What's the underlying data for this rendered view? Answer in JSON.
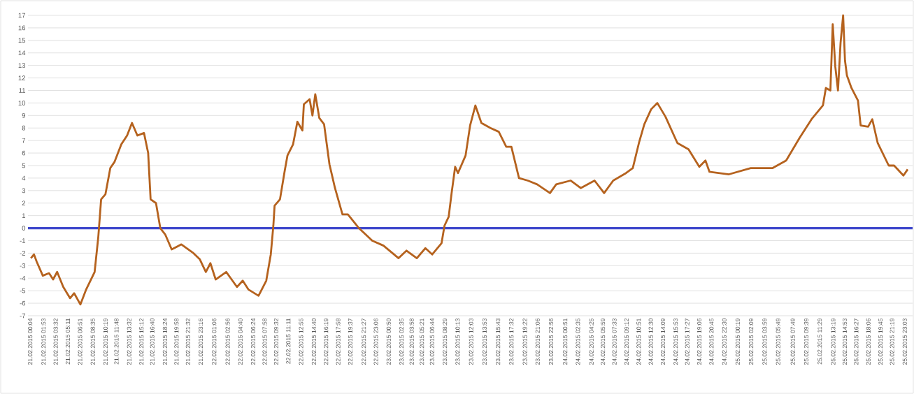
{
  "chart_data": {
    "type": "line",
    "x": [
      "2015-02-21T00:10",
      "2015-02-21T00:35",
      "2015-02-21T00:58",
      "2015-02-21T01:47",
      "2015-02-21T02:38",
      "2015-02-21T03:11",
      "2015-02-21T03:44",
      "2015-02-21T04:34",
      "2015-02-21T05:30",
      "2015-02-21T06:03",
      "2015-02-21T06:54",
      "2015-02-21T07:41",
      "2015-02-21T08:50",
      "2015-02-21T09:20",
      "2015-02-21T09:43",
      "2015-02-21T10:18",
      "2015-02-21T10:58",
      "2015-02-21T11:33",
      "2015-02-21T12:28",
      "2015-02-21T13:15",
      "2015-02-21T13:55",
      "2015-02-21T14:39",
      "2015-02-21T15:33",
      "2015-02-21T16:07",
      "2015-02-21T16:27",
      "2015-02-21T17:11",
      "2015-02-21T17:46",
      "2015-02-21T18:26",
      "2015-02-21T19:19",
      "2015-02-21T20:38",
      "2015-02-21T22:17",
      "2015-02-21T23:09",
      "2015-02-21T23:58",
      "2015-02-22T00:35",
      "2015-02-22T01:18",
      "2015-02-22T02:44",
      "2015-02-22T04:12",
      "2015-02-22T04:59",
      "2015-02-22T05:45",
      "2015-02-22T07:08",
      "2015-02-22T08:11",
      "2015-02-22T08:48",
      "2015-02-22T09:09",
      "2015-02-22T09:19",
      "2015-02-22T10:03",
      "2015-02-22T10:42",
      "2015-02-22T11:04",
      "2015-02-22T11:50",
      "2015-02-22T12:25",
      "2015-02-22T13:06",
      "2015-02-22T13:18",
      "2015-02-22T14:05",
      "2015-02-22T14:28",
      "2015-02-22T14:51",
      "2015-02-22T15:24",
      "2015-02-22T16:03",
      "2015-02-22T16:47",
      "2015-02-22T17:32",
      "2015-02-22T18:33",
      "2015-02-22T19:17",
      "2015-02-22T20:47",
      "2015-02-22T22:36",
      "2015-02-23T00:08",
      "2015-02-23T02:11",
      "2015-02-23T03:16",
      "2015-02-23T04:40",
      "2015-02-23T05:50",
      "2015-02-23T06:46",
      "2015-02-23T08:02",
      "2015-02-23T08:26",
      "2015-02-23T09:00",
      "2015-02-23T09:24",
      "2015-02-23T09:53",
      "2015-02-23T10:16",
      "2015-02-23T11:18",
      "2015-02-23T11:55",
      "2015-02-23T12:38",
      "2015-02-23T13:27",
      "2015-02-23T14:41",
      "2015-02-23T15:49",
      "2015-02-23T16:50",
      "2015-02-23T17:32",
      "2015-02-23T18:34",
      "2015-02-23T19:46",
      "2015-02-23T21:02",
      "2015-02-23T22:47",
      "2015-02-23T23:38",
      "2015-02-24T01:35",
      "2015-02-24T02:58",
      "2015-02-24T04:51",
      "2015-02-24T06:09",
      "2015-02-24T07:23",
      "2015-02-24T09:08",
      "2015-02-24T10:03",
      "2015-02-24T10:53",
      "2015-02-24T11:37",
      "2015-02-24T12:33",
      "2015-02-24T13:23",
      "2015-02-24T14:30",
      "2015-02-24T16:07",
      "2015-02-24T17:38",
      "2015-02-24T19:06",
      "2015-02-24T19:56",
      "2015-02-24T20:29",
      "2015-02-24T23:08",
      "2015-02-25T02:06",
      "2015-02-25T05:05",
      "2015-02-25T06:55",
      "2015-02-25T08:44",
      "2015-02-25T10:22",
      "2015-02-25T11:55",
      "2015-02-25T12:19",
      "2015-02-25T12:56",
      "2015-02-25T13:15",
      "2015-02-25T13:36",
      "2015-02-25T13:58",
      "2015-02-25T14:19",
      "2015-02-25T14:40",
      "2015-02-25T14:55",
      "2015-02-25T15:11",
      "2015-02-25T15:48",
      "2015-02-25T16:41",
      "2015-02-25T17:03",
      "2015-02-25T18:04",
      "2015-02-25T18:38",
      "2015-02-25T19:22",
      "2015-02-25T20:52",
      "2015-02-25T21:36",
      "2015-02-25T22:52",
      "2015-02-25T23:27"
    ],
    "series": [
      {
        "color": "#b5621e",
        "values": [
          -2.4,
          -2.1,
          -2.7,
          -3.8,
          -3.6,
          -4.1,
          -3.5,
          -4.7,
          -5.6,
          -5.2,
          -6.1,
          -4.9,
          -3.5,
          -0.7,
          2.3,
          2.7,
          4.8,
          5.3,
          6.7,
          7.4,
          8.4,
          7.4,
          7.6,
          6.0,
          2.3,
          2.0,
          0.0,
          -0.5,
          -1.7,
          -1.3,
          -2.0,
          -2.5,
          -3.5,
          -2.8,
          -4.1,
          -3.5,
          -4.7,
          -4.2,
          -4.9,
          -5.4,
          -4.2,
          -2.1,
          0.2,
          1.8,
          2.3,
          4.6,
          5.8,
          6.7,
          8.5,
          7.8,
          9.9,
          10.3,
          9.0,
          10.7,
          8.8,
          8.3,
          5.1,
          3.2,
          1.1,
          1.1,
          0.0,
          -1.0,
          -1.4,
          -2.4,
          -1.8,
          -2.4,
          -1.6,
          -2.1,
          -1.2,
          0.2,
          0.9,
          2.8,
          4.9,
          4.4,
          5.8,
          8.2,
          9.8,
          8.4,
          8.0,
          7.7,
          6.5,
          6.5,
          4.0,
          3.8,
          3.5,
          2.8,
          3.5,
          3.8,
          3.2,
          3.8,
          2.8,
          3.8,
          4.4,
          4.8,
          6.8,
          8.3,
          9.5,
          10.0,
          8.9,
          6.8,
          6.3,
          4.9,
          5.4,
          4.5,
          4.3,
          4.8,
          4.8,
          5.4,
          7.2,
          8.7,
          9.8,
          11.2,
          11.0,
          16.3,
          12.9,
          11.0,
          14.8,
          17.0,
          13.4,
          12.2,
          11.2,
          10.2,
          8.2,
          8.1,
          8.7,
          6.8,
          5.0,
          5.0,
          4.2,
          4.7
        ]
      }
    ],
    "xlim": [
      "2015-02-20T23:46",
      "2015-02-26T00:07"
    ],
    "xticks": [
      {
        "value": "2015-02-21T00:04",
        "label": "21.02.2015 00:04"
      },
      {
        "value": "2015-02-21T01:53",
        "label": "21.02.2015 01:53"
      },
      {
        "value": "2015-02-21T03:32",
        "label": "21.02.2015 03:32"
      },
      {
        "value": "2015-02-21T05:11",
        "label": "21.02.2015 05:11"
      },
      {
        "value": "2015-02-21T06:51",
        "label": "21.02.2015 06:51"
      },
      {
        "value": "2015-02-21T08:35",
        "label": "21.02.2015 08:35"
      },
      {
        "value": "2015-02-21T10:19",
        "label": "21.02.2015 10:19"
      },
      {
        "value": "2015-02-21T11:48",
        "label": "21.02.2015 11:48"
      },
      {
        "value": "2015-02-21T13:32",
        "label": "21.02.2015 13:32"
      },
      {
        "value": "2015-02-21T15:12",
        "label": "21.02.2015 15:12"
      },
      {
        "value": "2015-02-21T16:40",
        "label": "21.02.2015 16:40"
      },
      {
        "value": "2015-02-21T18:24",
        "label": "21.02.2015 18:24"
      },
      {
        "value": "2015-02-21T19:58",
        "label": "21.02.2015 19:58"
      },
      {
        "value": "2015-02-21T21:32",
        "label": "21.02.2015 21:32"
      },
      {
        "value": "2015-02-21T23:16",
        "label": "21.02.2015 23:16"
      },
      {
        "value": "2015-02-22T01:06",
        "label": "22.02.2015 01:06"
      },
      {
        "value": "2015-02-22T02:56",
        "label": "22.02.2015 02:56"
      },
      {
        "value": "2015-02-22T04:40",
        "label": "22.02.2015 04:40"
      },
      {
        "value": "2015-02-22T06:24",
        "label": "22.02.2015 06:24"
      },
      {
        "value": "2015-02-22T07:58",
        "label": "22.02.2015 07:58"
      },
      {
        "value": "2015-02-22T09:32",
        "label": "22.02.2015 09:32"
      },
      {
        "value": "2015-02-22T11:11",
        "label": "22.02.2015 11:11"
      },
      {
        "value": "2015-02-22T12:55",
        "label": "22.02.2015 12:55"
      },
      {
        "value": "2015-02-22T14:40",
        "label": "22.02.2015 14:40"
      },
      {
        "value": "2015-02-22T16:19",
        "label": "22.02.2015 16:19"
      },
      {
        "value": "2015-02-22T17:58",
        "label": "22.02.2015 17:58"
      },
      {
        "value": "2015-02-22T19:37",
        "label": "22.02.2015 19:37"
      },
      {
        "value": "2015-02-22T21:27",
        "label": "22.02.2015 21:27"
      },
      {
        "value": "2015-02-22T23:06",
        "label": "22.02.2015 23:06"
      },
      {
        "value": "2015-02-23T00:50",
        "label": "23.02.2015 00:50"
      },
      {
        "value": "2015-02-23T02:35",
        "label": "23.02.2015 02:35"
      },
      {
        "value": "2015-02-23T03:58",
        "label": "23.02.2015 03:58"
      },
      {
        "value": "2015-02-23T05:21",
        "label": "23.02.2015 05:21"
      },
      {
        "value": "2015-02-23T06:44",
        "label": "23.02.2015 06:44"
      },
      {
        "value": "2015-02-23T08:29",
        "label": "23.02.2015 08:29"
      },
      {
        "value": "2015-02-23T10:13",
        "label": "23.02.2015 10:13"
      },
      {
        "value": "2015-02-23T12:03",
        "label": "23.02.2015 12:03"
      },
      {
        "value": "2015-02-23T13:53",
        "label": "23.02.2015 13:53"
      },
      {
        "value": "2015-02-23T15:43",
        "label": "23.02.2015 15:43"
      },
      {
        "value": "2015-02-23T17:32",
        "label": "23.02.2015 17:32"
      },
      {
        "value": "2015-02-23T19:22",
        "label": "23.02.2015 19:22"
      },
      {
        "value": "2015-02-23T21:06",
        "label": "23.02.2015 21:06"
      },
      {
        "value": "2015-02-23T22:56",
        "label": "23.02.2015 22:56"
      },
      {
        "value": "2015-02-24T00:51",
        "label": "24.02.2015 00:51"
      },
      {
        "value": "2015-02-24T02:35",
        "label": "24.02.2015 02:35"
      },
      {
        "value": "2015-02-24T04:25",
        "label": "24.02.2015 04:25"
      },
      {
        "value": "2015-02-24T05:59",
        "label": "24.02.2015 05:59"
      },
      {
        "value": "2015-02-24T07:33",
        "label": "24.02.2015 07:33"
      },
      {
        "value": "2015-02-24T09:12",
        "label": "24.02.2015 09:12"
      },
      {
        "value": "2015-02-24T10:51",
        "label": "24.02.2015 10:51"
      },
      {
        "value": "2015-02-24T12:30",
        "label": "24.02.2015 12:30"
      },
      {
        "value": "2015-02-24T14:09",
        "label": "24.02.2015 14:09"
      },
      {
        "value": "2015-02-24T15:53",
        "label": "24.02.2015 15:53"
      },
      {
        "value": "2015-02-24T17:27",
        "label": "24.02.2015 17:27"
      },
      {
        "value": "2015-02-24T19:06",
        "label": "24.02.2015 19:06"
      },
      {
        "value": "2015-02-24T20:45",
        "label": "24.02.2015 20:45"
      },
      {
        "value": "2015-02-24T22:30",
        "label": "24.02.2015 22:30"
      },
      {
        "value": "2015-02-25T00:19",
        "label": "25.02.2015 00:19"
      },
      {
        "value": "2015-02-25T02:09",
        "label": "25.02.2015 02:09"
      },
      {
        "value": "2015-02-25T03:59",
        "label": "25.02.2015 03:59"
      },
      {
        "value": "2015-02-25T05:49",
        "label": "25.02.2015 05:49"
      },
      {
        "value": "2015-02-25T07:49",
        "label": "25.02.2015 07:49"
      },
      {
        "value": "2015-02-25T09:39",
        "label": "25.02.2015 09:39"
      },
      {
        "value": "2015-02-25T11:29",
        "label": "25.02.2015 11:29"
      },
      {
        "value": "2015-02-25T13:19",
        "label": "25.02.2015 13:19"
      },
      {
        "value": "2015-02-25T14:53",
        "label": "25.02.2015 14:53"
      },
      {
        "value": "2015-02-25T16:27",
        "label": "25.02.2015 16:27"
      },
      {
        "value": "2015-02-25T18:06",
        "label": "25.02.2015 18:06"
      },
      {
        "value": "2015-02-25T19:45",
        "label": "25.02.2015 19:45"
      },
      {
        "value": "2015-02-25T21:19",
        "label": "25.02.2015 21:19"
      },
      {
        "value": "2015-02-25T23:03",
        "label": "25.02.2015 23:03"
      }
    ],
    "ylim": [
      -7,
      17
    ],
    "yticks": [
      -7,
      -6,
      -5,
      -4,
      -3,
      -2,
      -1,
      0,
      1,
      2,
      3,
      4,
      5,
      6,
      7,
      8,
      9,
      10,
      11,
      12,
      13,
      14,
      15,
      16,
      17
    ],
    "grid": "y",
    "ref_lines": [
      {
        "axis": "y",
        "value": 0,
        "color": "#3f48cc"
      }
    ]
  }
}
